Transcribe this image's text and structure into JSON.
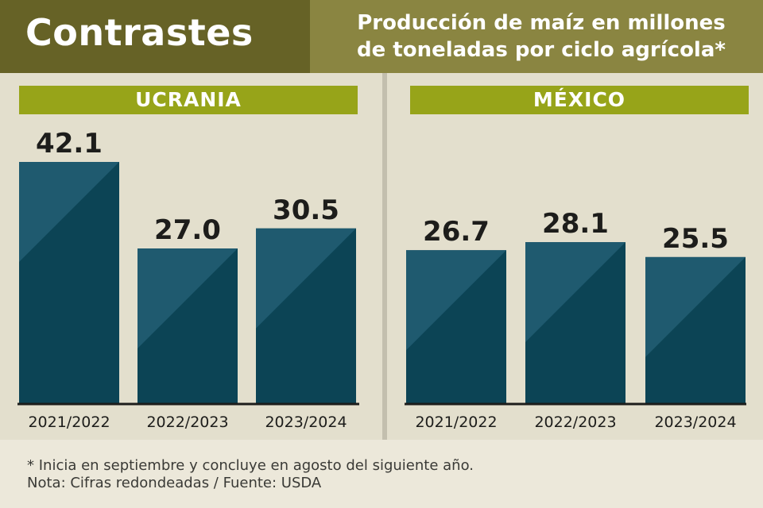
{
  "header": {
    "brand": "Contrastes",
    "title_line1": "Producción de maíz en millones",
    "title_line2": "de toneladas por ciclo agrícola*"
  },
  "chart_data": [
    {
      "type": "bar",
      "title": "UCRANIA",
      "categories": [
        "2021/2022",
        "2022/2023",
        "2023/2024"
      ],
      "values": [
        42.1,
        27.0,
        30.5
      ],
      "value_labels": [
        "42.1",
        "27.0",
        "30.5"
      ],
      "ylim": [
        0,
        42.1
      ],
      "grid": false
    },
    {
      "type": "bar",
      "title": "MÉXICO",
      "categories": [
        "2021/2022",
        "2022/2023",
        "2023/2024"
      ],
      "values": [
        26.7,
        28.1,
        25.5
      ],
      "value_labels": [
        "26.7",
        "28.1",
        "25.5"
      ],
      "ylim": [
        0,
        42.1
      ],
      "grid": false
    }
  ],
  "footer": {
    "note1": "* Inicia en septiembre y concluye en agosto del siguiente año.",
    "note2": "Nota: Cifras redondeadas / Fuente: USDA"
  },
  "colors": {
    "bar_dark": "#0c4455",
    "bar_light": "#1f5a6f",
    "band": "#97a419",
    "header": "#8a8541",
    "brand": "#666226"
  }
}
